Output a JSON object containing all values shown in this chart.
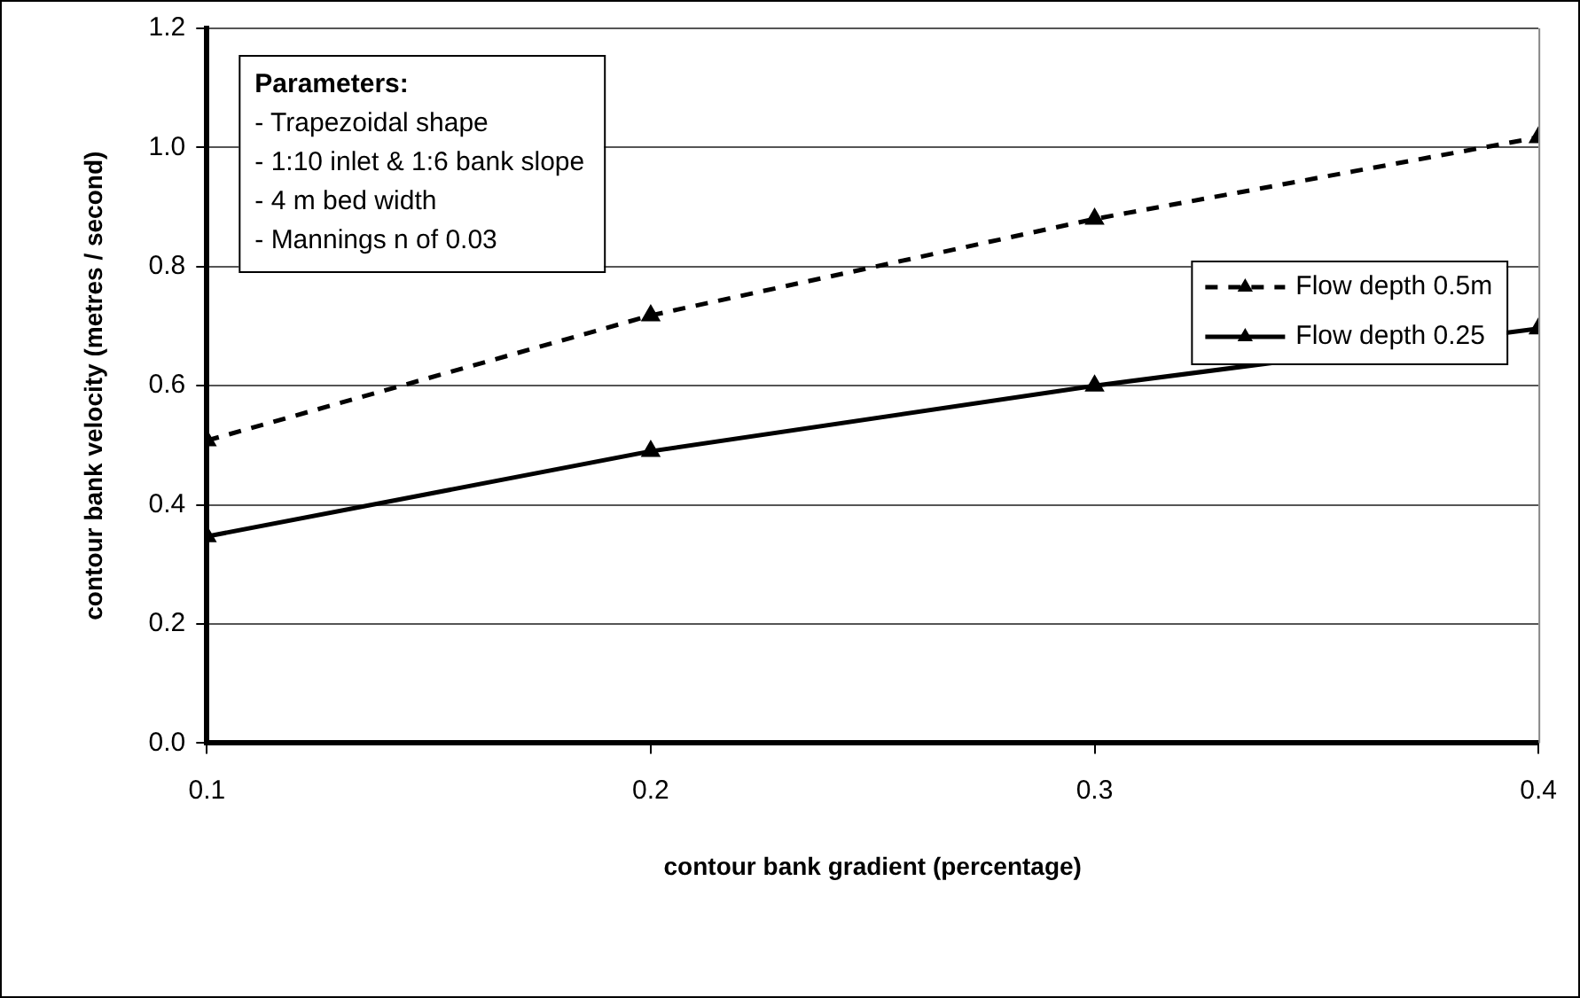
{
  "chart_data": {
    "type": "line",
    "xlabel": "contour bank gradient (percentage)",
    "ylabel": "contour bank velocity (metres / second)",
    "x": [
      0.1,
      0.2,
      0.3,
      0.4
    ],
    "series": [
      {
        "name": "Flow depth 0.5m",
        "color": "#000000",
        "line_style": "dashed",
        "values": [
          0.508,
          0.718,
          0.88,
          1.017
        ]
      },
      {
        "name": "Flow depth 0.25",
        "color": "#000000",
        "line_style": "solid",
        "values": [
          0.347,
          0.49,
          0.6,
          0.696
        ]
      }
    ],
    "xlim": [
      0.1,
      0.4
    ],
    "xticks": [
      0.1,
      0.2,
      0.3,
      0.4
    ],
    "ylim": [
      0,
      1.2
    ],
    "yticks": [
      {
        "value": 0,
        "label": "0.0"
      },
      0.2,
      0.4,
      0.6,
      0.8,
      {
        "value": 1,
        "label": "1.0"
      },
      1.2
    ],
    "grid": "y",
    "legend": "right",
    "marker": "triangle",
    "annotations": [
      "Parameters:",
      "- Trapezoidal shape",
      "- 1:10 inlet & 1:6 bank slope",
      "- 4 m bed width",
      "- Mannings n of 0.03"
    ]
  }
}
